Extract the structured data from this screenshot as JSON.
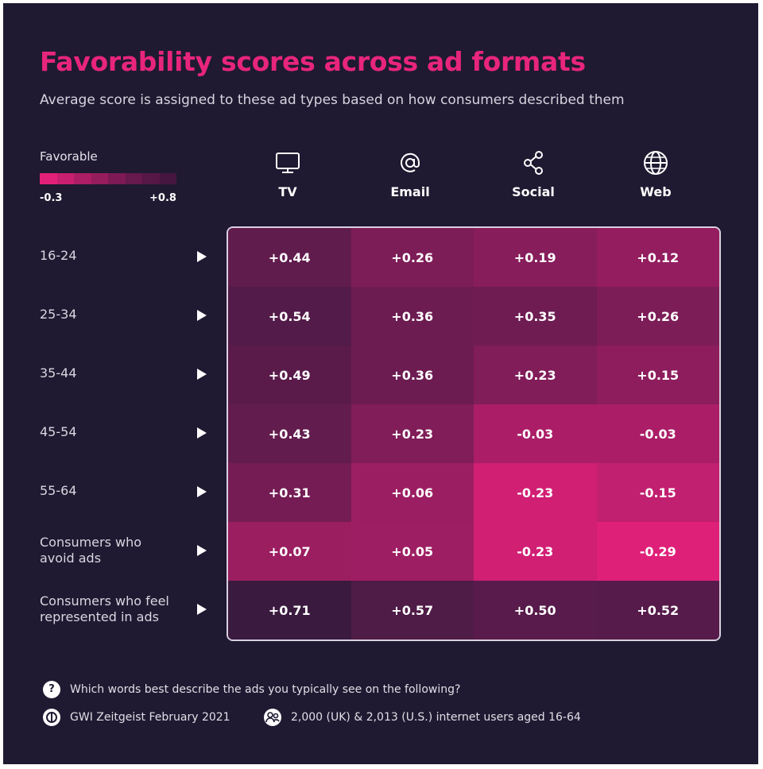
{
  "title": "Favorability scores across ad formats",
  "subtitle": "Average score is assigned to these ad types based on how consumers described them",
  "legend": {
    "label": "Favorable",
    "min_label": "-0.3",
    "max_label": "+0.8",
    "colors": [
      "#e2207a",
      "#c81f70",
      "#ad1e66",
      "#951c5d",
      "#7d1a55",
      "#67184d",
      "#561646",
      "#45153f"
    ]
  },
  "chart_data": {
    "type": "heatmap",
    "title": "Favorability scores across ad formats",
    "subtitle": "Average score is assigned to these ad types based on how consumers described them",
    "columns": [
      {
        "label": "TV",
        "icon": "tv-icon"
      },
      {
        "label": "Email",
        "icon": "at-sign-icon"
      },
      {
        "label": "Social",
        "icon": "share-icon"
      },
      {
        "label": "Web",
        "icon": "globe-icon"
      }
    ],
    "rows": [
      "16-24",
      "25-34",
      "35-44",
      "45-54",
      "55-64",
      "Consumers who avoid ads",
      "Consumers who feel represented in ads"
    ],
    "values": [
      [
        0.44,
        0.26,
        0.19,
        0.12
      ],
      [
        0.54,
        0.36,
        0.35,
        0.26
      ],
      [
        0.49,
        0.36,
        0.23,
        0.15
      ],
      [
        0.43,
        0.23,
        -0.03,
        -0.03
      ],
      [
        0.31,
        0.06,
        -0.23,
        -0.15
      ],
      [
        0.07,
        0.05,
        -0.23,
        -0.29
      ],
      [
        0.71,
        0.57,
        0.5,
        0.52
      ]
    ],
    "display_values": [
      [
        "+0.44",
        "+0.26",
        "+0.19",
        "+0.12"
      ],
      [
        "+0.54",
        "+0.36",
        "+0.35",
        "+0.26"
      ],
      [
        "+0.49",
        "+0.36",
        "+0.23",
        "+0.15"
      ],
      [
        "+0.43",
        "+0.23",
        "-0.03",
        "-0.03"
      ],
      [
        "+0.31",
        "+0.06",
        "-0.23",
        "-0.15"
      ],
      [
        "+0.07",
        "+0.05",
        "-0.23",
        "-0.29"
      ],
      [
        "+0.71",
        "+0.57",
        "+0.50",
        "+0.52"
      ]
    ],
    "scale": {
      "min": -0.3,
      "max": 0.8,
      "label": "Favorable",
      "min_color": "#e2207a",
      "max_color": "#2e1a3c"
    }
  },
  "footer": {
    "question_icon_text": "?",
    "question": "Which words best describe the ads you typically see on the following?",
    "source": "GWI Zeitgeist February 2021",
    "sample": "2,000 (UK) & 2,013 (U.S.) internet users aged 16-64"
  },
  "colors": {
    "background": "#1f1a31",
    "accent": "#e8257c",
    "text": "#ffffff"
  }
}
